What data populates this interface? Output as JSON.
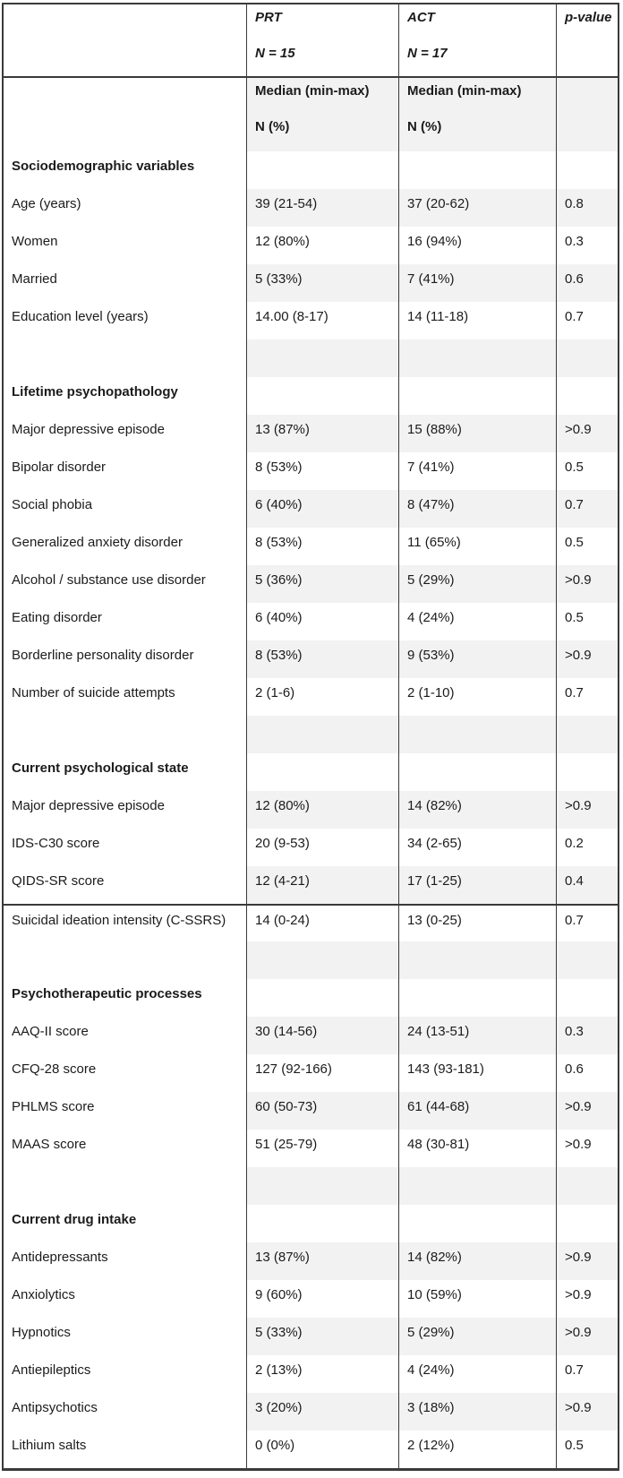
{
  "table": {
    "columns": {
      "group1": {
        "name": "PRT",
        "n": "N = 15"
      },
      "group2": {
        "name": "ACT",
        "n": "N = 17"
      },
      "pvalue_header": "p-value"
    },
    "subheader": {
      "stat_label": "Median (min-max)",
      "count_label": "N (%)"
    },
    "rows": [
      {
        "kind": "section",
        "shaded": false,
        "label": "Sociodemographic variables"
      },
      {
        "kind": "data",
        "shaded": true,
        "label": "Age (years)",
        "prt": "39 (21-54)",
        "act": "37 (20-62)",
        "p": "0.8"
      },
      {
        "kind": "data",
        "shaded": false,
        "label": "Women",
        "prt": "12 (80%)",
        "act": "16 (94%)",
        "p": "0.3"
      },
      {
        "kind": "data",
        "shaded": true,
        "label": "Married",
        "prt": "5 (33%)",
        "act": "7 (41%)",
        "p": "0.6"
      },
      {
        "kind": "data",
        "shaded": false,
        "label": "Education level (years)",
        "prt": "14.00 (8-17)",
        "act": "14 (11-18)",
        "p": "0.7"
      },
      {
        "kind": "spacer",
        "shaded": true
      },
      {
        "kind": "section",
        "shaded": false,
        "label": "Lifetime psychopathology"
      },
      {
        "kind": "data",
        "shaded": true,
        "label": "Major depressive episode",
        "prt": "13 (87%)",
        "act": "15 (88%)",
        "p": ">0.9"
      },
      {
        "kind": "data",
        "shaded": false,
        "label": "Bipolar disorder",
        "prt": "8 (53%)",
        "act": "7 (41%)",
        "p": "0.5"
      },
      {
        "kind": "data",
        "shaded": true,
        "label": "Social phobia",
        "prt": "6 (40%)",
        "act": "8 (47%)",
        "p": "0.7"
      },
      {
        "kind": "data",
        "shaded": false,
        "label": "Generalized anxiety disorder",
        "prt": "8 (53%)",
        "act": "11 (65%)",
        "p": "0.5"
      },
      {
        "kind": "data",
        "shaded": true,
        "label": "Alcohol / substance use disorder",
        "prt": "5 (36%)",
        "act": "5 (29%)",
        "p": ">0.9"
      },
      {
        "kind": "data",
        "shaded": false,
        "label": "Eating disorder",
        "prt": "6 (40%)",
        "act": "4 (24%)",
        "p": "0.5"
      },
      {
        "kind": "data",
        "shaded": true,
        "label": "Borderline personality disorder",
        "prt": "8 (53%)",
        "act": "9 (53%)",
        "p": ">0.9"
      },
      {
        "kind": "data",
        "shaded": false,
        "label": "Number of suicide attempts",
        "prt": "2 (1-6)",
        "act": "2 (1-10)",
        "p": "0.7"
      },
      {
        "kind": "spacer",
        "shaded": true
      },
      {
        "kind": "section",
        "shaded": false,
        "label": "Current psychological state"
      },
      {
        "kind": "data",
        "shaded": true,
        "label": "Major depressive episode",
        "prt": "12 (80%)",
        "act": "14 (82%)",
        "p": ">0.9"
      },
      {
        "kind": "data",
        "shaded": false,
        "label": "IDS-C30 score",
        "prt": "20 (9-53)",
        "act": "34 (2-65)",
        "p": "0.2"
      },
      {
        "kind": "data",
        "shaded": true,
        "label": "QIDS-SR score",
        "prt": "12 (4-21)",
        "act": "17 (1-25)",
        "p": "0.4"
      },
      {
        "kind": "data",
        "shaded": false,
        "page_break_above": true,
        "label": "Suicidal ideation intensity (C-SSRS)",
        "prt": "14 (0-24)",
        "act": "13 (0-25)",
        "p": "0.7"
      },
      {
        "kind": "spacer",
        "shaded": true
      },
      {
        "kind": "section",
        "shaded": false,
        "label": "Psychotherapeutic processes"
      },
      {
        "kind": "data",
        "shaded": true,
        "label": "AAQ-II score",
        "prt": "30 (14-56)",
        "act": "24 (13-51)",
        "p": "0.3"
      },
      {
        "kind": "data",
        "shaded": false,
        "label": "CFQ-28 score",
        "prt": "127 (92-166)",
        "act": "143 (93-181)",
        "p": "0.6"
      },
      {
        "kind": "data",
        "shaded": true,
        "label": "PHLMS score",
        "prt": "60 (50-73)",
        "act": "61 (44-68)",
        "p": ">0.9"
      },
      {
        "kind": "data",
        "shaded": false,
        "label": "MAAS score",
        "prt": "51 (25-79)",
        "act": "48 (30-81)",
        "p": ">0.9"
      },
      {
        "kind": "spacer",
        "shaded": true
      },
      {
        "kind": "section",
        "shaded": false,
        "label": "Current drug intake"
      },
      {
        "kind": "data",
        "shaded": true,
        "label": "Antidepressants",
        "prt": "13 (87%)",
        "act": "14 (82%)",
        "p": ">0.9"
      },
      {
        "kind": "data",
        "shaded": false,
        "label": "Anxiolytics",
        "prt": "9 (60%)",
        "act": "10 (59%)",
        "p": ">0.9"
      },
      {
        "kind": "data",
        "shaded": true,
        "label": "Hypnotics",
        "prt": "5 (33%)",
        "act": "5 (29%)",
        "p": ">0.9"
      },
      {
        "kind": "data",
        "shaded": false,
        "label": "Antiepileptics",
        "prt": "2 (13%)",
        "act": "4 (24%)",
        "p": "0.7"
      },
      {
        "kind": "data",
        "shaded": true,
        "label": "Antipsychotics",
        "prt": "3 (20%)",
        "act": "3 (18%)",
        "p": ">0.9"
      },
      {
        "kind": "data",
        "shaded": false,
        "label": "Lithium salts",
        "prt": "0 (0%)",
        "act": "2 (12%)",
        "p": "0.5"
      }
    ]
  }
}
